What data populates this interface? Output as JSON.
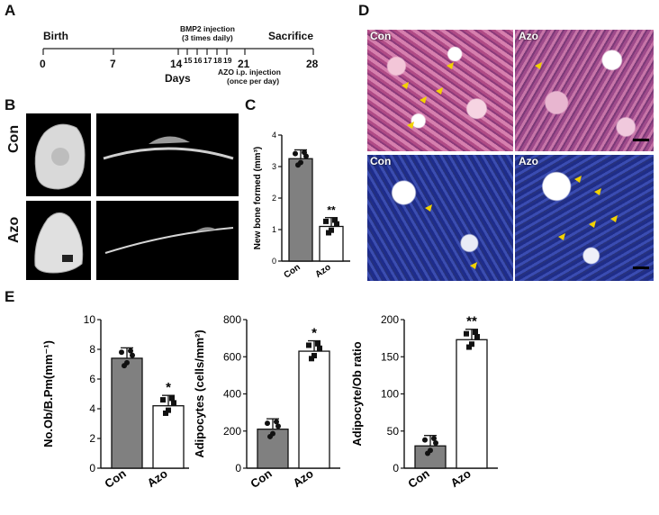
{
  "panels": {
    "A": "A",
    "B": "B",
    "C": "C",
    "D": "D",
    "E": "E"
  },
  "timeline": {
    "birth": "Birth",
    "sacrifice": "Sacrifice",
    "days": "Days",
    "ticks": [
      "0",
      "7",
      "14",
      "15",
      "16",
      "17",
      "18",
      "19",
      "21",
      "28"
    ],
    "bmp2": "BMP2 injection",
    "bmp2_sub": "(3 times daily)",
    "azo": "AZO i.p. injection",
    "azo_sub": "(once per day)"
  },
  "panel_b": {
    "row1": "Con",
    "row2": "Azo"
  },
  "panel_d": {
    "tl": "Con",
    "tr": "Azo",
    "bl": "Con",
    "br": "Azo"
  },
  "colors": {
    "con_bar": "#808080",
    "azo_bar": "#ffffff",
    "arrow": "#f2d200"
  },
  "chart_data": [
    {
      "type": "bar",
      "categories": [
        "Con",
        "Azo"
      ],
      "values": [
        3.25,
        1.1
      ],
      "ylabel": "New bone formed (mm³)",
      "ylim": [
        0,
        4
      ],
      "yticks": [
        "0",
        "1",
        "2",
        "3",
        "4"
      ],
      "significance": [
        "",
        "**"
      ]
    },
    {
      "type": "bar",
      "categories": [
        "Con",
        "Azo"
      ],
      "values": [
        7.4,
        4.2
      ],
      "ylabel": "No.Ob/B.Pm(mm⁻¹)",
      "ylim": [
        0,
        10
      ],
      "yticks": [
        "0",
        "2",
        "4",
        "6",
        "8",
        "10"
      ],
      "significance": [
        "",
        "*"
      ]
    },
    {
      "type": "bar",
      "categories": [
        "Con",
        "Azo"
      ],
      "values": [
        210,
        630
      ],
      "ylabel": "Adipocytes (cells/mm²)",
      "ylim": [
        0,
        800
      ],
      "yticks": [
        "0",
        "200",
        "400",
        "600",
        "800"
      ],
      "significance": [
        "",
        "*"
      ]
    },
    {
      "type": "bar",
      "categories": [
        "Con",
        "Azo"
      ],
      "values": [
        30,
        173
      ],
      "ylabel": "Adipocyte/Ob ratio",
      "ylim": [
        0,
        200
      ],
      "yticks": [
        "0",
        "50",
        "100",
        "150",
        "200"
      ],
      "significance": [
        "",
        "**"
      ]
    }
  ]
}
